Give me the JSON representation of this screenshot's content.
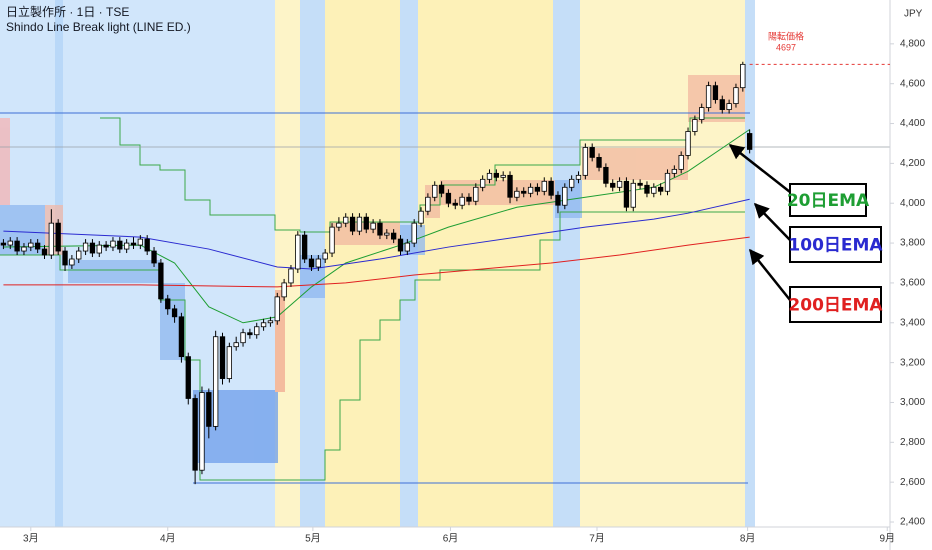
{
  "chart_data": {
    "type": "candlestick",
    "title": "日立製作所 · 1日 · TSE",
    "subtitle": "Shindo Line Break light (LINE ED.)",
    "currency": "JPY",
    "x": [
      0,
      1,
      2,
      3,
      4,
      5,
      6,
      7,
      8,
      9,
      10,
      11,
      12,
      13,
      14,
      15,
      16,
      17,
      18,
      19,
      20,
      21,
      22,
      23,
      24,
      25,
      26,
      27,
      28,
      29,
      30,
      31,
      32,
      33,
      34,
      35,
      36,
      37,
      38,
      39,
      40,
      41,
      42,
      43,
      44,
      45,
      46,
      47,
      48,
      49,
      50,
      51,
      52,
      53,
      54,
      55,
      56,
      57,
      58,
      59,
      60,
      61,
      62,
      63,
      64,
      65,
      66,
      67,
      68,
      69,
      70,
      71,
      72,
      73,
      74,
      75,
      76,
      77,
      78,
      79,
      80,
      81,
      82,
      83,
      84,
      85,
      86,
      87,
      88,
      89,
      90,
      91,
      92,
      93,
      94,
      95,
      96,
      97,
      98,
      99,
      100,
      101,
      102,
      103,
      104,
      105,
      106,
      107,
      108,
      109
    ],
    "open": [
      3800,
      3790,
      3810,
      3760,
      3780,
      3800,
      3770,
      3740,
      3900,
      3760,
      3690,
      3720,
      3760,
      3800,
      3750,
      3790,
      3780,
      3810,
      3770,
      3800,
      3790,
      3820,
      3760,
      3700,
      3520,
      3470,
      3430,
      3230,
      3020,
      2660,
      3050,
      2880,
      3330,
      3120,
      3280,
      3300,
      3350,
      3340,
      3380,
      3400,
      3410,
      3530,
      3600,
      3670,
      3840,
      3720,
      3680,
      3720,
      3750,
      3880,
      3900,
      3930,
      3860,
      3930,
      3870,
      3900,
      3840,
      3850,
      3820,
      3760,
      3800,
      3900,
      3960,
      4030,
      4090,
      4050,
      4000,
      3990,
      4030,
      4010,
      4080,
      4120,
      4150,
      4130,
      4140,
      4030,
      4060,
      4050,
      4080,
      4060,
      4110,
      4040,
      3990,
      4080,
      4120,
      4140,
      4280,
      4230,
      4180,
      4100,
      4080,
      4110,
      3980,
      4100,
      4090,
      4050,
      4080,
      4060,
      4150,
      4170,
      4240,
      4360,
      4420,
      4480,
      4590,
      4520,
      4470,
      4500,
      4580,
      4350
    ],
    "high": [
      3820,
      3830,
      3830,
      3800,
      3820,
      3820,
      3790,
      3970,
      3920,
      3780,
      3740,
      3780,
      3820,
      3820,
      3810,
      3810,
      3830,
      3830,
      3820,
      3830,
      3840,
      3840,
      3780,
      3720,
      3540,
      3490,
      3450,
      3250,
      3040,
      3080,
      3070,
      3360,
      3350,
      3300,
      3330,
      3370,
      3370,
      3400,
      3420,
      3430,
      3550,
      3620,
      3690,
      3860,
      3860,
      3740,
      3740,
      3770,
      3900,
      3930,
      3950,
      3950,
      3950,
      3950,
      3920,
      3920,
      3870,
      3870,
      3840,
      3820,
      3920,
      3980,
      4050,
      4110,
      4110,
      4070,
      4020,
      4050,
      4050,
      4100,
      4140,
      4170,
      4170,
      4160,
      4160,
      4080,
      4080,
      4100,
      4100,
      4130,
      4130,
      4060,
      4100,
      4140,
      4160,
      4300,
      4300,
      4250,
      4200,
      4120,
      4130,
      4130,
      4120,
      4120,
      4110,
      4100,
      4100,
      4170,
      4190,
      4260,
      4380,
      4440,
      4500,
      4610,
      4610,
      4540,
      4520,
      4600,
      4710,
      4370
    ],
    "low": [
      3770,
      3770,
      3740,
      3740,
      3760,
      3750,
      3720,
      3720,
      3740,
      3660,
      3670,
      3700,
      3740,
      3730,
      3730,
      3760,
      3760,
      3750,
      3750,
      3770,
      3770,
      3740,
      3680,
      3500,
      3440,
      3400,
      3200,
      2990,
      2590,
      2640,
      2820,
      2860,
      3090,
      3100,
      3260,
      3280,
      3320,
      3320,
      3360,
      3380,
      3390,
      3510,
      3580,
      3650,
      3700,
      3660,
      3660,
      3700,
      3730,
      3860,
      3880,
      3840,
      3840,
      3850,
      3850,
      3820,
      3820,
      3800,
      3740,
      3740,
      3780,
      3880,
      3940,
      4010,
      4030,
      3980,
      3970,
      3970,
      3990,
      3990,
      4060,
      4100,
      4110,
      4110,
      4000,
      4010,
      4030,
      4030,
      4040,
      4040,
      4020,
      3950,
      3970,
      4060,
      4100,
      4120,
      4210,
      4160,
      4080,
      4060,
      4060,
      3960,
      3960,
      4070,
      4030,
      4030,
      4040,
      4040,
      4130,
      4150,
      4220,
      4340,
      4400,
      4460,
      4500,
      4450,
      4450,
      4480,
      4560,
      4250
    ],
    "close": [
      3790,
      3810,
      3760,
      3780,
      3800,
      3770,
      3740,
      3900,
      3760,
      3690,
      3720,
      3760,
      3800,
      3750,
      3790,
      3780,
      3810,
      3770,
      3800,
      3790,
      3820,
      3760,
      3700,
      3520,
      3470,
      3430,
      3230,
      3020,
      2660,
      3050,
      2880,
      3330,
      3120,
      3280,
      3300,
      3350,
      3340,
      3380,
      3400,
      3410,
      3530,
      3600,
      3670,
      3840,
      3720,
      3680,
      3720,
      3750,
      3880,
      3900,
      3930,
      3860,
      3930,
      3870,
      3900,
      3840,
      3850,
      3820,
      3760,
      3800,
      3900,
      3960,
      4030,
      4090,
      4050,
      4000,
      3990,
      4030,
      4010,
      4080,
      4120,
      4150,
      4130,
      4140,
      4030,
      4060,
      4050,
      4080,
      4060,
      4110,
      4040,
      3990,
      4080,
      4120,
      4140,
      4280,
      4230,
      4180,
      4100,
      4080,
      4110,
      3980,
      4100,
      4090,
      4050,
      4080,
      4060,
      4150,
      4170,
      4240,
      4360,
      4420,
      4480,
      4590,
      4520,
      4470,
      4500,
      4580,
      4697,
      4270
    ],
    "up_color": "#ffffff",
    "down_color": "#000000",
    "xlim": [
      -0.5,
      129.5
    ],
    "xticks": [
      {
        "value": 4,
        "label": "3月"
      },
      {
        "value": 24,
        "label": "4月"
      },
      {
        "value": 45.2,
        "label": "5月"
      },
      {
        "value": 65.3,
        "label": "6月"
      },
      {
        "value": 86.7,
        "label": "7月"
      },
      {
        "value": 108.7,
        "label": "8月"
      },
      {
        "value": 129.1,
        "label": "9月"
      }
    ],
    "ylim": [
      2375,
      5020
    ],
    "yticks": [
      {
        "value": 4800,
        "label": "4,800"
      },
      {
        "value": 4600,
        "label": "4,600"
      },
      {
        "value": 4400,
        "label": "4,400"
      },
      {
        "value": 4200,
        "label": "4,200"
      },
      {
        "value": 4000,
        "label": "4,000"
      },
      {
        "value": 3800,
        "label": "3,800"
      },
      {
        "value": 3600,
        "label": "3,600"
      },
      {
        "value": 3400,
        "label": "3,400"
      },
      {
        "value": 3200,
        "label": "3,200"
      },
      {
        "value": 3000,
        "label": "3,000"
      },
      {
        "value": 2800,
        "label": "2,800"
      },
      {
        "value": 2600,
        "label": "2,600"
      },
      {
        "value": 2400,
        "label": "2,400"
      }
    ],
    "series": [
      {
        "name": "20日EMA",
        "color": "#1e9e33",
        "x": [
          0,
          20,
          25,
          30,
          35,
          40,
          45,
          50,
          58,
          65,
          75,
          85,
          95,
          100,
          109
        ],
        "values": [
          3780,
          3790,
          3700,
          3480,
          3400,
          3430,
          3580,
          3700,
          3790,
          3880,
          3980,
          4030,
          4080,
          4160,
          4370
        ]
      },
      {
        "name": "100日EMA",
        "color": "#2a2ad0",
        "x": [
          0,
          20,
          30,
          40,
          45,
          55,
          65,
          75,
          85,
          95,
          100,
          109
        ],
        "values": [
          3860,
          3830,
          3770,
          3680,
          3670,
          3720,
          3780,
          3830,
          3880,
          3920,
          3950,
          4020
        ]
      },
      {
        "name": "200日EMA",
        "color": "#e02020",
        "x": [
          0,
          20,
          40,
          50,
          60,
          70,
          80,
          90,
          100,
          109
        ],
        "values": [
          3590,
          3590,
          3580,
          3600,
          3640,
          3670,
          3700,
          3740,
          3790,
          3830
        ]
      }
    ],
    "reversal": {
      "label": "陽転価格",
      "value": 4697,
      "color": "#e53935"
    }
  }
}
